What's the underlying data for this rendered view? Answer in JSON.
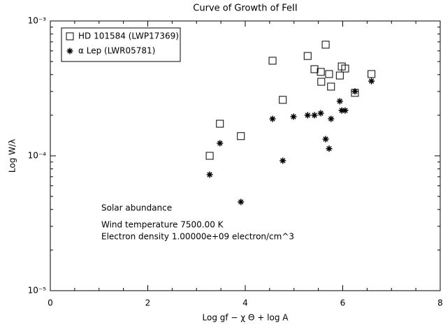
{
  "chart_data": {
    "type": "scatter",
    "title": "Curve of Growth of FeII",
    "x_label": "Log gf −  χ Θ  + log A",
    "y_label": "Log W/λ",
    "log_y": true,
    "xlim": [
      0,
      8
    ],
    "xticks": [
      0,
      2,
      4,
      6,
      8
    ],
    "ylim": [
      1e-05,
      0.001
    ],
    "yticks": [
      {
        "value": 1e-05,
        "label": "10⁻⁵"
      },
      {
        "value": 0.0001,
        "label": "10⁻⁴"
      },
      {
        "value": 0.001,
        "label": "10⁻³"
      }
    ],
    "annotations": [
      "Solar abundance",
      "Wind temperature  7500.00 K",
      "Electron density    1.00000e+09 electron/cm^3"
    ],
    "series": [
      {
        "name": "HD 101584 (LWP17369)",
        "marker": "square",
        "color": "#000000",
        "x": [
          3.27,
          3.48,
          3.91,
          4.56,
          4.77,
          5.28,
          5.42,
          5.55,
          5.56,
          5.65,
          5.72,
          5.76,
          5.94,
          5.98,
          6.05,
          6.25,
          6.59
        ],
        "values": [
          0.0001,
          0.000173,
          0.00014,
          0.000507,
          0.00026,
          0.00055,
          0.000439,
          0.000419,
          0.000354,
          0.000667,
          0.000404,
          0.000326,
          0.000394,
          0.00046,
          0.000444,
          0.000293,
          0.000404
        ]
      },
      {
        "name": "α Lep (LWR05781)",
        "marker": "asterisk",
        "color": "#000000",
        "x": [
          3.27,
          3.48,
          3.91,
          4.56,
          4.77,
          4.99,
          5.28,
          5.42,
          5.55,
          5.65,
          5.72,
          5.76,
          5.94,
          5.98,
          6.05,
          6.25,
          6.59
        ],
        "values": [
          7.25e-05,
          0.000124,
          4.55e-05,
          0.000188,
          9.2e-05,
          0.000195,
          0.0002,
          0.0002,
          0.000207,
          0.000133,
          0.000113,
          0.000188,
          0.000254,
          0.000217,
          0.000217,
          0.0003,
          0.000358
        ]
      }
    ]
  }
}
